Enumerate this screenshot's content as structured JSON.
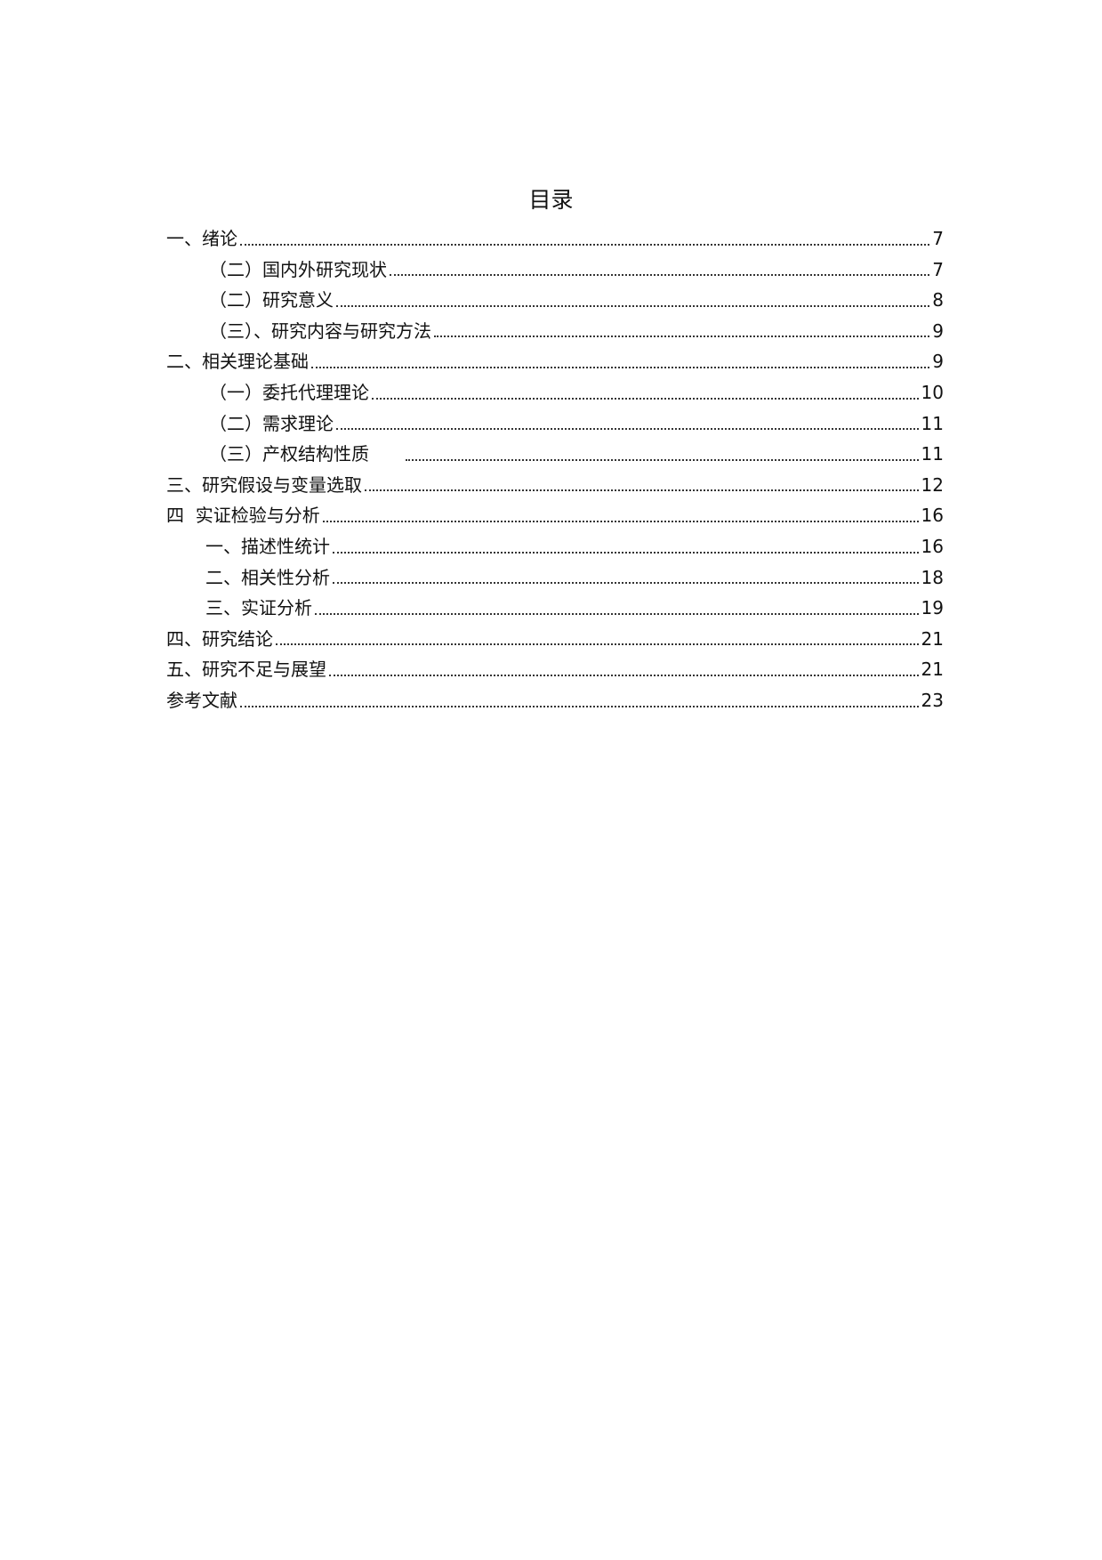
{
  "title": "目录",
  "entries": [
    {
      "label": "一、绪论",
      "page": "7",
      "level": 1
    },
    {
      "label": "（二）国内外研究现状",
      "page": "7",
      "level": 2
    },
    {
      "label": "（二）研究意义",
      "page": "8",
      "level": 2
    },
    {
      "label": "（三）、研究内容与研究方法",
      "page": "9",
      "level": 2
    },
    {
      "label": "二、相关理论基础",
      "page": "9",
      "level": 1
    },
    {
      "label": "（一）委托代理理论",
      "page": "10",
      "level": 2
    },
    {
      "label": "（二）需求理论",
      "page": "11",
      "level": 2
    },
    {
      "label": "（三）产权结构性质      ",
      "page": "11",
      "level": 2
    },
    {
      "label": "三、研究假设与变量选取",
      "page": "12",
      "level": 1
    },
    {
      "label": "四  实证检验与分析",
      "page": "16",
      "level": 1
    },
    {
      "label": "一、描述性统计",
      "page": "16",
      "level": 3
    },
    {
      "label": "二、相关性分析",
      "page": "18",
      "level": 3
    },
    {
      "label": "三、实证分析",
      "page": "19",
      "level": 3
    },
    {
      "label": "四、研究结论",
      "page": "21",
      "level": 1
    },
    {
      "label": "五、研究不足与展望",
      "page": "21",
      "level": 1
    },
    {
      "label": "参考文献",
      "page": "23",
      "level": 1
    }
  ]
}
